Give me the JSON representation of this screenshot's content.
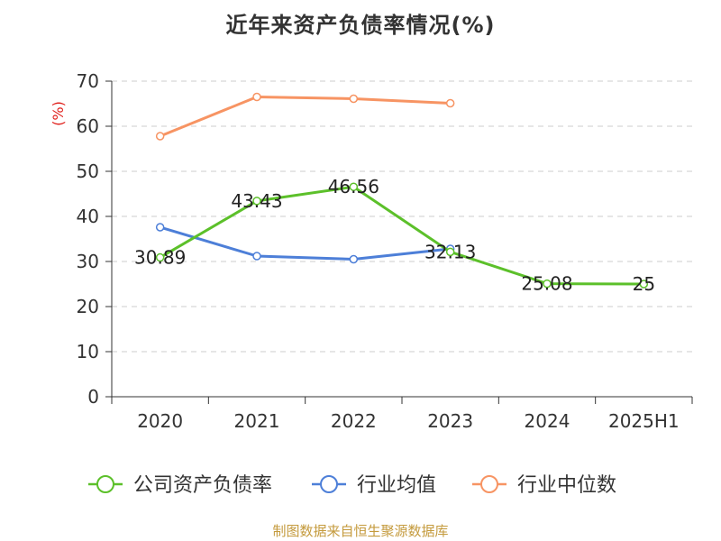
{
  "colors": {
    "company": "#5cc02a",
    "industry_avg": "#4d7fd8",
    "industry_median": "#f79463",
    "unit": "#e0211d",
    "source": "#c49a3c",
    "grid": "#cccccc",
    "axis": "#333333"
  },
  "chart_data": {
    "type": "line",
    "title": "近年来资产负债率情况(%)",
    "ylabel": "(%)",
    "xlabel": "",
    "categories": [
      "2020",
      "2021",
      "2022",
      "2023",
      "2024",
      "2025H1"
    ],
    "ylim": [
      0,
      70
    ],
    "yticks": [
      0,
      10,
      20,
      30,
      40,
      50,
      60,
      70
    ],
    "grid": true,
    "grid_style": "dashed-horizontal",
    "legend_position": "bottom",
    "series": [
      {
        "name": "公司资产负债率",
        "color_key": "company",
        "values": [
          30.89,
          43.43,
          46.56,
          32.13,
          25.08,
          25
        ],
        "labels": [
          "30.89",
          "43.43",
          "46.56",
          "32.13",
          "25.08",
          "25"
        ]
      },
      {
        "name": "行业均值",
        "color_key": "industry_avg",
        "values": [
          37.6,
          31.2,
          30.5,
          32.8,
          null,
          null
        ]
      },
      {
        "name": "行业中位数",
        "color_key": "industry_median",
        "values": [
          57.8,
          66.5,
          66.1,
          65.1,
          null,
          null
        ]
      }
    ]
  },
  "source_text": "制图数据来自恒生聚源数据库"
}
